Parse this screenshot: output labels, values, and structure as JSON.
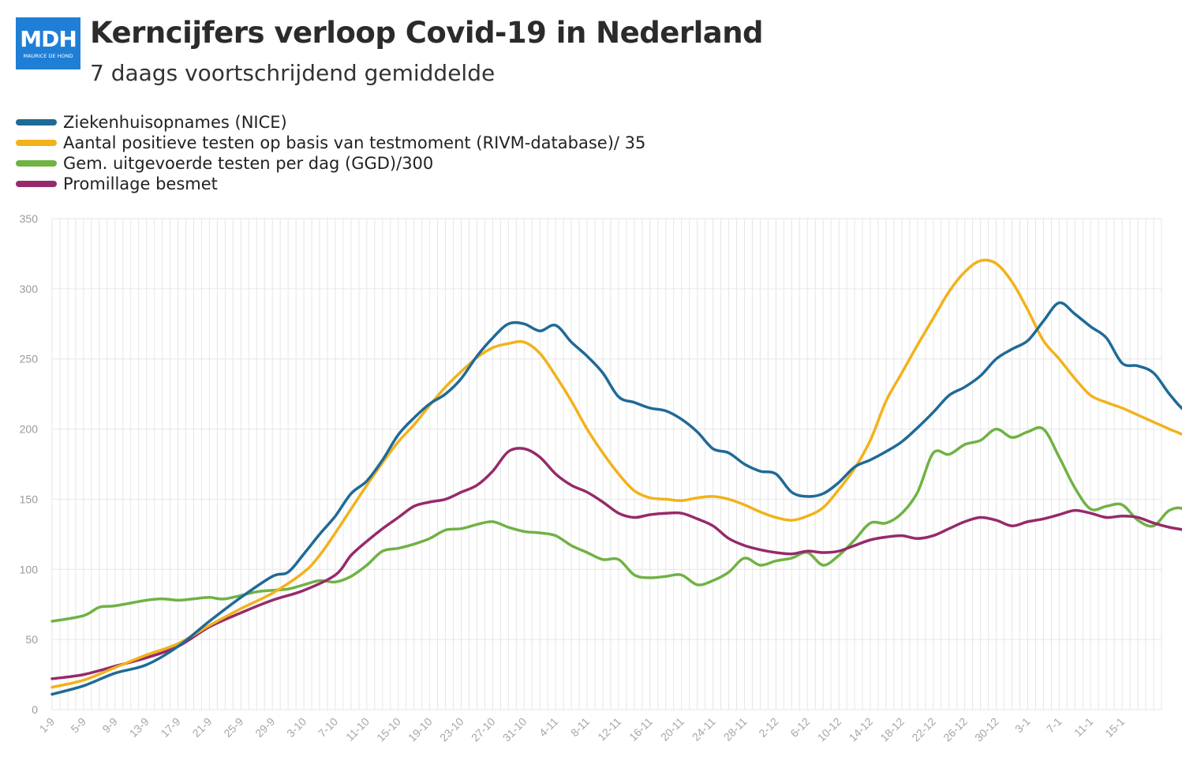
{
  "header": {
    "logo_text": "MDH",
    "logo_subtext": "MAURICE DE HOND",
    "title": "Kerncijfers verloop Covid-19 in Nederland",
    "subtitle": "7 daags voortschrijdend gemiddelde"
  },
  "colors": {
    "blue": "#1f6a97",
    "orange": "#f2b21b",
    "green": "#70b244",
    "purple": "#962a6b",
    "grid": "#e6e6e6",
    "logo": "#1f7fd6"
  },
  "chart_data": {
    "type": "line",
    "title": "Kerncijfers verloop Covid-19 in Nederland",
    "subtitle": "7 daags voortschrijdend gemiddelde",
    "ylim": [
      0,
      350
    ],
    "y_ticks": [
      "0",
      "50",
      "100",
      "150",
      "200",
      "250",
      "300",
      "350"
    ],
    "x_tick_labels": [
      "1-9",
      "5-9",
      "9-9",
      "13-9",
      "17-9",
      "21-9",
      "25-9",
      "29-9",
      "3-10",
      "7-10",
      "11-10",
      "15-10",
      "19-10",
      "23-10",
      "27-10",
      "31-10",
      "4-11",
      "8-11",
      "12-11",
      "16-11",
      "20-11",
      "24-11",
      "28-11",
      "2-12",
      "6-12",
      "10-12",
      "14-12",
      "18-12",
      "22-12",
      "26-12",
      "30-12",
      "3-1",
      "7-1",
      "11-1",
      "15-1"
    ],
    "grid": true,
    "legend_position": "top-left",
    "x_days_total": 141,
    "series": [
      {
        "name": "Ziekenhuisopnames (NICE)",
        "color": "#1f6a97",
        "points": [
          [
            0,
            11
          ],
          [
            4,
            17
          ],
          [
            8,
            26
          ],
          [
            12,
            32
          ],
          [
            16,
            45
          ],
          [
            20,
            63
          ],
          [
            24,
            80
          ],
          [
            28,
            95
          ],
          [
            30,
            98
          ],
          [
            32,
            111
          ],
          [
            34,
            125
          ],
          [
            36,
            138
          ],
          [
            38,
            154
          ],
          [
            40,
            163
          ],
          [
            42,
            178
          ],
          [
            44,
            196
          ],
          [
            46,
            208
          ],
          [
            48,
            218
          ],
          [
            50,
            225
          ],
          [
            52,
            236
          ],
          [
            54,
            252
          ],
          [
            56,
            265
          ],
          [
            58,
            275
          ],
          [
            60,
            275
          ],
          [
            62,
            270
          ],
          [
            64,
            274
          ],
          [
            66,
            262
          ],
          [
            68,
            252
          ],
          [
            70,
            240
          ],
          [
            72,
            223
          ],
          [
            74,
            219
          ],
          [
            76,
            215
          ],
          [
            78,
            213
          ],
          [
            80,
            207
          ],
          [
            82,
            198
          ],
          [
            84,
            186
          ],
          [
            86,
            183
          ],
          [
            88,
            175
          ],
          [
            90,
            170
          ],
          [
            92,
            168
          ],
          [
            94,
            155
          ],
          [
            96,
            152
          ],
          [
            98,
            154
          ],
          [
            100,
            162
          ],
          [
            102,
            173
          ],
          [
            104,
            178
          ],
          [
            106,
            184
          ],
          [
            108,
            191
          ],
          [
            110,
            201
          ],
          [
            112,
            212
          ],
          [
            114,
            224
          ],
          [
            116,
            230
          ],
          [
            118,
            238
          ],
          [
            120,
            250
          ],
          [
            122,
            257
          ],
          [
            124,
            263
          ],
          [
            126,
            277
          ],
          [
            128,
            290
          ],
          [
            130,
            282
          ],
          [
            132,
            273
          ],
          [
            134,
            265
          ],
          [
            136,
            247
          ],
          [
            138,
            245
          ],
          [
            140,
            240
          ],
          [
            142,
            225
          ],
          [
            144,
            213
          ],
          [
            146,
            210
          ],
          [
            148,
            202
          ]
        ]
      },
      {
        "name": "Aantal positieve testen op basis van testmoment (RIVM-database)/ 35",
        "color": "#f2b21b",
        "points": [
          [
            0,
            16
          ],
          [
            4,
            21
          ],
          [
            8,
            30
          ],
          [
            12,
            39
          ],
          [
            16,
            47
          ],
          [
            20,
            60
          ],
          [
            24,
            72
          ],
          [
            28,
            83
          ],
          [
            32,
            98
          ],
          [
            34,
            110
          ],
          [
            36,
            126
          ],
          [
            38,
            143
          ],
          [
            40,
            160
          ],
          [
            42,
            176
          ],
          [
            44,
            191
          ],
          [
            46,
            203
          ],
          [
            48,
            217
          ],
          [
            50,
            230
          ],
          [
            52,
            241
          ],
          [
            54,
            251
          ],
          [
            56,
            258
          ],
          [
            58,
            261
          ],
          [
            60,
            262
          ],
          [
            62,
            254
          ],
          [
            64,
            238
          ],
          [
            66,
            220
          ],
          [
            68,
            200
          ],
          [
            70,
            183
          ],
          [
            72,
            168
          ],
          [
            74,
            156
          ],
          [
            76,
            151
          ],
          [
            78,
            150
          ],
          [
            80,
            149
          ],
          [
            82,
            151
          ],
          [
            84,
            152
          ],
          [
            86,
            150
          ],
          [
            88,
            146
          ],
          [
            90,
            141
          ],
          [
            92,
            137
          ],
          [
            94,
            135
          ],
          [
            96,
            138
          ],
          [
            98,
            144
          ],
          [
            100,
            157
          ],
          [
            102,
            172
          ],
          [
            104,
            192
          ],
          [
            106,
            220
          ],
          [
            108,
            240
          ],
          [
            110,
            260
          ],
          [
            112,
            279
          ],
          [
            114,
            298
          ],
          [
            116,
            312
          ],
          [
            118,
            320
          ],
          [
            120,
            318
          ],
          [
            122,
            305
          ],
          [
            124,
            285
          ],
          [
            126,
            263
          ],
          [
            128,
            250
          ],
          [
            130,
            236
          ],
          [
            132,
            224
          ],
          [
            134,
            219
          ],
          [
            136,
            215
          ],
          [
            138,
            210
          ],
          [
            140,
            205
          ],
          [
            142,
            200
          ],
          [
            144,
            195
          ],
          [
            146,
            186
          ],
          [
            148,
            192
          ],
          [
            149,
            191
          ]
        ]
      },
      {
        "name": "Gem. uitgevoerde testen per dag (GGD)/300",
        "color": "#70b244",
        "points": [
          [
            0,
            63
          ],
          [
            4,
            67
          ],
          [
            6,
            73
          ],
          [
            8,
            74
          ],
          [
            12,
            78
          ],
          [
            14,
            79
          ],
          [
            16,
            78
          ],
          [
            18,
            79
          ],
          [
            20,
            80
          ],
          [
            22,
            79
          ],
          [
            26,
            84
          ],
          [
            28,
            85
          ],
          [
            30,
            86
          ],
          [
            32,
            89
          ],
          [
            34,
            92
          ],
          [
            36,
            91
          ],
          [
            38,
            95
          ],
          [
            40,
            103
          ],
          [
            42,
            113
          ],
          [
            44,
            115
          ],
          [
            46,
            118
          ],
          [
            48,
            122
          ],
          [
            50,
            128
          ],
          [
            52,
            129
          ],
          [
            54,
            132
          ],
          [
            56,
            134
          ],
          [
            58,
            130
          ],
          [
            60,
            127
          ],
          [
            62,
            126
          ],
          [
            64,
            124
          ],
          [
            66,
            117
          ],
          [
            68,
            112
          ],
          [
            70,
            107
          ],
          [
            72,
            107
          ],
          [
            74,
            96
          ],
          [
            76,
            94
          ],
          [
            78,
            95
          ],
          [
            80,
            96
          ],
          [
            82,
            89
          ],
          [
            84,
            92
          ],
          [
            86,
            98
          ],
          [
            88,
            108
          ],
          [
            90,
            103
          ],
          [
            92,
            106
          ],
          [
            94,
            108
          ],
          [
            96,
            112
          ],
          [
            98,
            103
          ],
          [
            100,
            110
          ],
          [
            102,
            121
          ],
          [
            104,
            133
          ],
          [
            106,
            133
          ],
          [
            108,
            140
          ],
          [
            110,
            155
          ],
          [
            112,
            183
          ],
          [
            114,
            182
          ],
          [
            116,
            189
          ],
          [
            118,
            192
          ],
          [
            120,
            200
          ],
          [
            122,
            194
          ],
          [
            124,
            198
          ],
          [
            126,
            200
          ],
          [
            128,
            180
          ],
          [
            130,
            158
          ],
          [
            132,
            143
          ],
          [
            134,
            145
          ],
          [
            136,
            146
          ],
          [
            138,
            135
          ],
          [
            140,
            131
          ],
          [
            142,
            142
          ],
          [
            144,
            142
          ],
          [
            146,
            124
          ]
        ]
      },
      {
        "name": "Promillage besmet",
        "color": "#962a6b",
        "points": [
          [
            0,
            22
          ],
          [
            4,
            25
          ],
          [
            8,
            31
          ],
          [
            12,
            37
          ],
          [
            16,
            45
          ],
          [
            20,
            59
          ],
          [
            24,
            69
          ],
          [
            28,
            78
          ],
          [
            32,
            85
          ],
          [
            36,
            96
          ],
          [
            38,
            110
          ],
          [
            40,
            120
          ],
          [
            42,
            129
          ],
          [
            44,
            137
          ],
          [
            46,
            145
          ],
          [
            48,
            148
          ],
          [
            50,
            150
          ],
          [
            52,
            155
          ],
          [
            54,
            160
          ],
          [
            56,
            170
          ],
          [
            58,
            184
          ],
          [
            60,
            186
          ],
          [
            62,
            180
          ],
          [
            64,
            168
          ],
          [
            66,
            160
          ],
          [
            68,
            155
          ],
          [
            70,
            148
          ],
          [
            72,
            140
          ],
          [
            74,
            137
          ],
          [
            76,
            139
          ],
          [
            78,
            140
          ],
          [
            80,
            140
          ],
          [
            82,
            136
          ],
          [
            84,
            131
          ],
          [
            86,
            122
          ],
          [
            88,
            117
          ],
          [
            90,
            114
          ],
          [
            92,
            112
          ],
          [
            94,
            111
          ],
          [
            96,
            113
          ],
          [
            98,
            112
          ],
          [
            100,
            113
          ],
          [
            102,
            117
          ],
          [
            104,
            121
          ],
          [
            106,
            123
          ],
          [
            108,
            124
          ],
          [
            110,
            122
          ],
          [
            112,
            124
          ],
          [
            114,
            129
          ],
          [
            116,
            134
          ],
          [
            118,
            137
          ],
          [
            120,
            135
          ],
          [
            122,
            131
          ],
          [
            124,
            134
          ],
          [
            126,
            136
          ],
          [
            128,
            139
          ],
          [
            130,
            142
          ],
          [
            132,
            140
          ],
          [
            134,
            137
          ],
          [
            136,
            138
          ],
          [
            138,
            137
          ],
          [
            140,
            133
          ],
          [
            142,
            130
          ],
          [
            144,
            128
          ],
          [
            146,
            126
          ]
        ]
      }
    ]
  }
}
